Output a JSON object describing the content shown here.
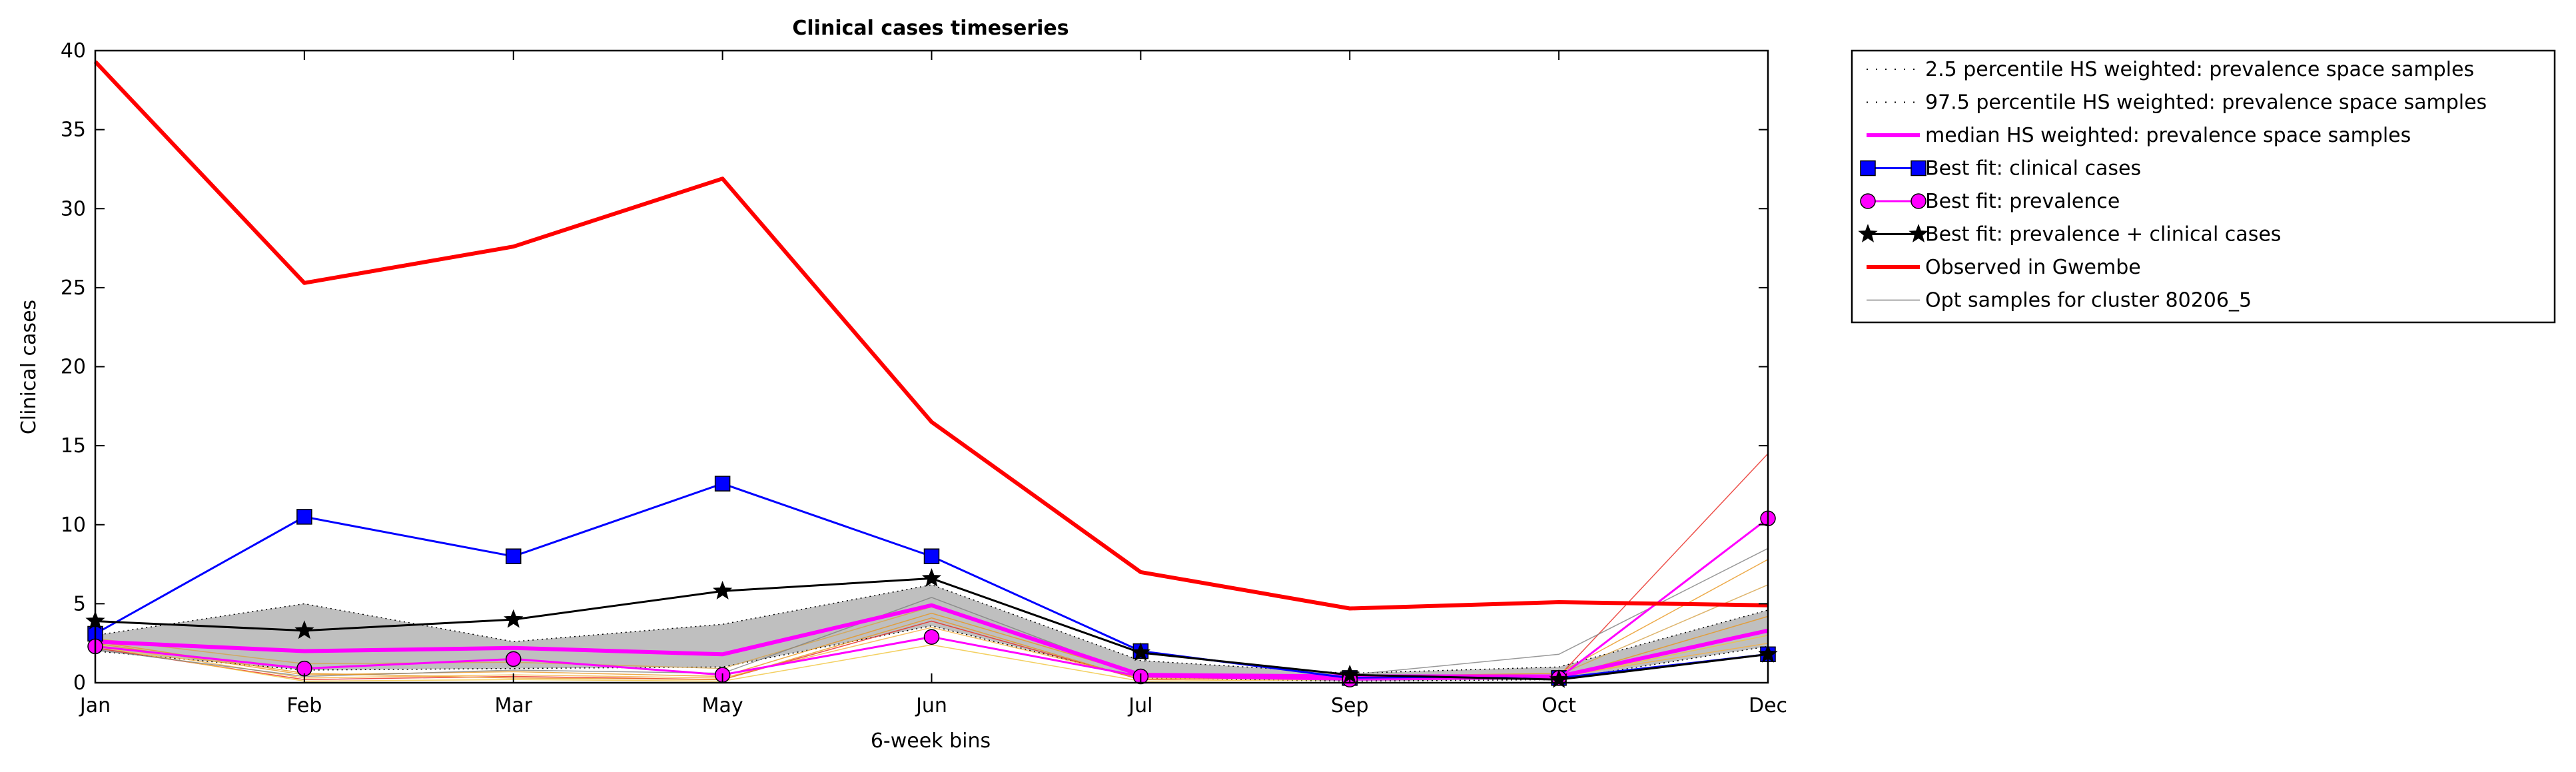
{
  "chart_data": {
    "type": "line",
    "title": "Clinical cases timeseries",
    "xlabel": "6-week bins",
    "ylabel": "Clinical cases",
    "categories": [
      "Jan",
      "Feb",
      "Mar",
      "May",
      "Jun",
      "Jul",
      "Sep",
      "Oct",
      "Dec"
    ],
    "ylim": [
      0,
      40
    ],
    "yticks": [
      0,
      5,
      10,
      15,
      20,
      25,
      30,
      35,
      40
    ],
    "grid": false,
    "legend_position": "outside-top-right",
    "band": {
      "lower_name": "2.5 percentile HS weighted: prevalence space samples",
      "upper_name": "97.5 percentile HS weighted: prevalence space samples",
      "lower": [
        2.0,
        0.8,
        0.9,
        1.0,
        3.6,
        0.3,
        0.1,
        0.2,
        2.3
      ],
      "upper": [
        3.0,
        5.0,
        2.6,
        3.7,
        6.2,
        1.4,
        0.6,
        1.0,
        4.6
      ],
      "fill_color": "#bfbfbf"
    },
    "samples": {
      "name": "Opt samples for cluster 80206_5",
      "series": [
        [
          2.2,
          0.2,
          0.4,
          0.2,
          3.9,
          0.2,
          0.3,
          0.4,
          14.5
        ],
        [
          2.5,
          0.5,
          0.7,
          0.4,
          4.4,
          0.5,
          0.4,
          0.6,
          7.8
        ],
        [
          2.3,
          0.1,
          0.2,
          0.1,
          2.4,
          0.1,
          0.2,
          0.3,
          3.0
        ],
        [
          2.8,
          1.2,
          1.3,
          0.9,
          4.8,
          0.6,
          0.3,
          0.5,
          6.2
        ],
        [
          2.4,
          0.3,
          0.5,
          0.3,
          3.5,
          0.3,
          0.2,
          0.4,
          2.5
        ],
        [
          2.1,
          0.4,
          0.8,
          0.6,
          5.4,
          0.4,
          0.5,
          1.8,
          8.5
        ],
        [
          2.6,
          0.6,
          0.3,
          0.2,
          4.1,
          0.2,
          0.3,
          0.3,
          4.2
        ]
      ],
      "colors": [
        "#e8261e",
        "#e8961e",
        "#f0c43a",
        "#d6a24a",
        "#f5b041",
        "#808080",
        "#e8961e"
      ]
    },
    "series": [
      {
        "name": "median HS weighted: prevalence space samples",
        "values": [
          2.6,
          2.0,
          2.2,
          1.8,
          4.9,
          0.5,
          0.4,
          0.4,
          3.3
        ],
        "color": "#ff00ff",
        "marker": "none"
      },
      {
        "name": "Best fit: clinical cases",
        "values": [
          3.1,
          10.5,
          8.0,
          12.6,
          8.0,
          2.0,
          0.3,
          0.3,
          1.8
        ],
        "color": "#0000ff",
        "marker": "square"
      },
      {
        "name": "Best fit: prevalence",
        "values": [
          2.3,
          0.9,
          1.5,
          0.5,
          2.9,
          0.4,
          0.2,
          0.3,
          10.4
        ],
        "color": "#ff00ff",
        "marker": "circle"
      },
      {
        "name": "Best fit: prevalence + clinical cases",
        "values": [
          3.9,
          3.3,
          4.0,
          5.8,
          6.6,
          1.9,
          0.5,
          0.2,
          1.8
        ],
        "color": "#000000",
        "marker": "star"
      },
      {
        "name": "Observed in Gwembe",
        "values": [
          39.3,
          25.3,
          27.6,
          31.9,
          16.5,
          7.0,
          4.7,
          5.1,
          4.9
        ],
        "color": "#ff0000",
        "marker": "none"
      }
    ],
    "legend": [
      {
        "label": "2.5 percentile HS weighted: prevalence space samples",
        "color": "#000000",
        "style": "dotted"
      },
      {
        "label": "97.5 percentile HS weighted: prevalence space samples",
        "color": "#000000",
        "style": "dotted"
      },
      {
        "label": "median HS weighted: prevalence space samples",
        "color": "#ff00ff",
        "style": "thick"
      },
      {
        "label": "Best fit: clinical cases",
        "color": "#0000ff",
        "style": "square"
      },
      {
        "label": "Best fit: prevalence",
        "color": "#ff00ff",
        "style": "circle"
      },
      {
        "label": "Best fit: prevalence + clinical cases",
        "color": "#000000",
        "style": "star"
      },
      {
        "label": "Observed in Gwembe",
        "color": "#ff0000",
        "style": "thick"
      },
      {
        "label": "Opt samples for cluster 80206_5",
        "color": "#808080",
        "style": "thin"
      }
    ]
  }
}
